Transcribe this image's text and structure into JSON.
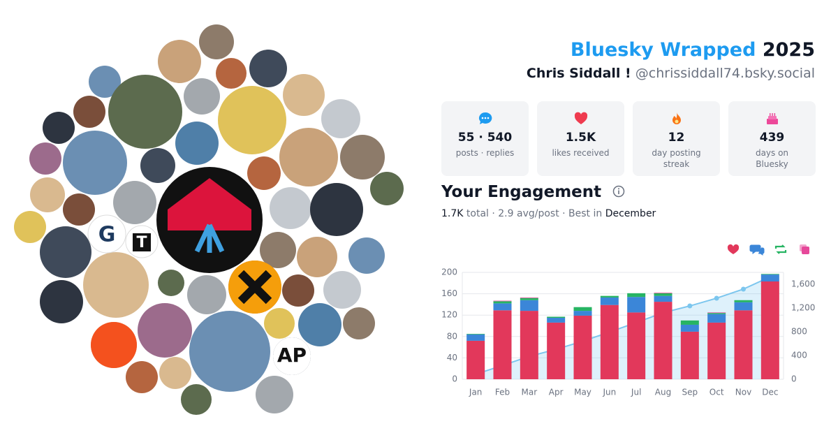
{
  "header": {
    "title": "Bluesky Wrapped",
    "year": "2025",
    "display_name": "Chris Siddall !",
    "handle": "@chrissiddall74.bsky.social"
  },
  "avatar_labels": [
    "G",
    "T",
    "AP"
  ],
  "stats": [
    {
      "value": "55 · 540",
      "label": "posts · replies"
    },
    {
      "value": "1.5K",
      "label": "likes received"
    },
    {
      "value": "12",
      "label": "day posting streak"
    },
    {
      "value": "439",
      "label": "days on Bluesky"
    }
  ],
  "engagement": {
    "title": "Your Engagement",
    "summary": [
      "1.7K",
      "total · 2.9 avg/post · Best in",
      "December"
    ]
  },
  "chart_data": {
    "type": "bar",
    "stacked": true,
    "categories": [
      "Jan",
      "Feb",
      "Mar",
      "Apr",
      "May",
      "Jun",
      "Jul",
      "Aug",
      "Sep",
      "Oct",
      "Nov",
      "Dec"
    ],
    "series": [
      {
        "color": "#e2385b",
        "icon": "heart",
        "values": [
          72,
          129,
          128,
          106,
          119,
          139,
          125,
          145,
          89,
          106,
          129,
          183
        ]
      },
      {
        "color": "#3b86d8",
        "icon": "reply",
        "values": [
          12,
          13,
          20,
          9,
          9,
          14,
          29,
          11,
          13,
          16,
          15,
          13
        ]
      },
      {
        "color": "#27b463",
        "icon": "repost",
        "values": [
          1,
          4,
          4,
          2,
          7,
          3,
          7,
          5,
          8,
          2,
          4,
          1
        ]
      },
      {
        "color": "#e6489a",
        "icon": "quote",
        "values": [
          0,
          1,
          1,
          0,
          0,
          0,
          0,
          1,
          0,
          1,
          0,
          0
        ]
      },
      {
        "type": "area",
        "axis": "y2",
        "color": "#7cc6ee",
        "values": [
          84,
          232,
          386,
          504,
          640,
          795,
          955,
          1120,
          1235,
          1365,
          1518,
          1725
        ]
      }
    ],
    "ylim": [
      0,
      200
    ],
    "yticks": [
      0,
      40,
      80,
      120,
      160,
      200
    ],
    "y2lim": [
      0,
      1800
    ],
    "y2ticks": [
      0,
      400,
      800,
      {
        "value": 1200,
        "label": "1,200"
      },
      {
        "value": 1600,
        "label": "1,600"
      }
    ],
    "grid": true
  }
}
